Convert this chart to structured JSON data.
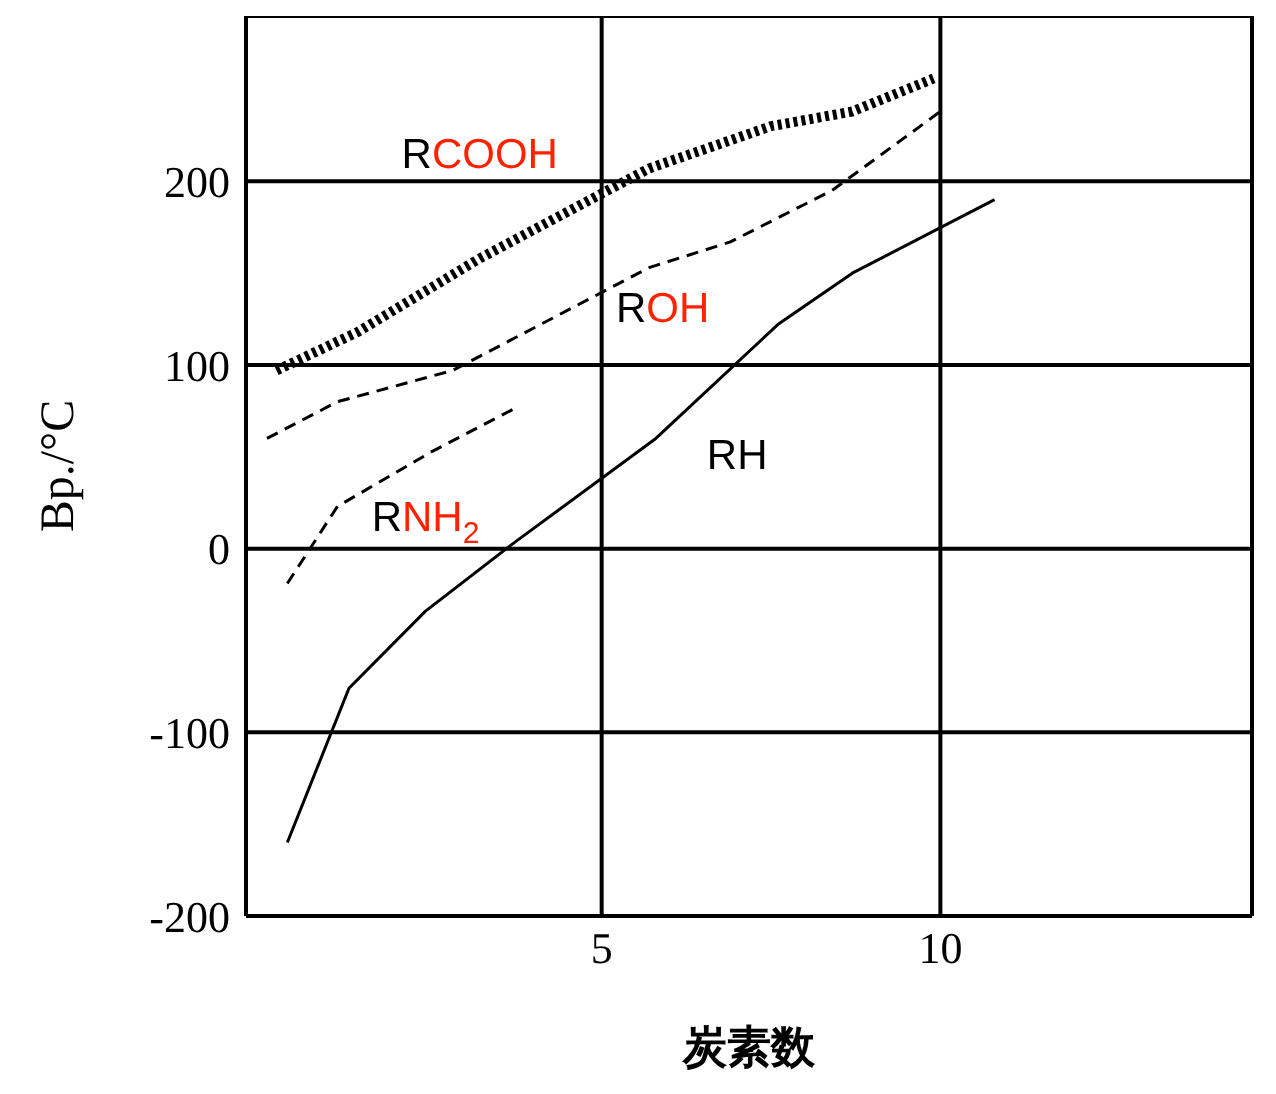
{
  "chart_data": {
    "type": "line",
    "xlabel": "炭素数",
    "ylabel": "Bp./°C",
    "xlim": [
      -0.25,
      14.6
    ],
    "xticks": [
      5,
      10
    ],
    "ylim": [
      -200,
      290
    ],
    "yticks": [
      -200,
      -100,
      0,
      100,
      200
    ],
    "grid": true,
    "marker": "none",
    "series": [
      {
        "name": "RH",
        "color": "#000000",
        "line_style": "solid",
        "x": [
          0.36,
          1.27,
          2.4,
          3.7,
          5.8,
          7.6,
          8.7,
          10.8
        ],
        "values": [
          -160,
          -76,
          -34,
          3,
          60,
          122,
          150,
          190
        ]
      },
      {
        "name": "RCOOH",
        "color": "#000000",
        "line_style": "dotted",
        "x": [
          0.2,
          1.4,
          3.2,
          5.7,
          7.5,
          8.7,
          9.9
        ],
        "values": [
          97,
          118,
          158,
          207,
          230,
          238,
          256
        ]
      },
      {
        "name": "ROH",
        "color": "#000000",
        "line_style": "dashed",
        "x": [
          0.06,
          1.1,
          2.8,
          5.7,
          6.9,
          8.4,
          10
        ],
        "values": [
          60,
          80,
          97,
          153,
          167,
          195,
          238
        ]
      },
      {
        "name": "RNH$_{2}$",
        "color": "#000000",
        "line_style": "dashed",
        "x": [
          0.36,
          1.1,
          2.5,
          3.7
        ],
        "values": [
          -19,
          23,
          53,
          76
        ]
      }
    ]
  }
}
